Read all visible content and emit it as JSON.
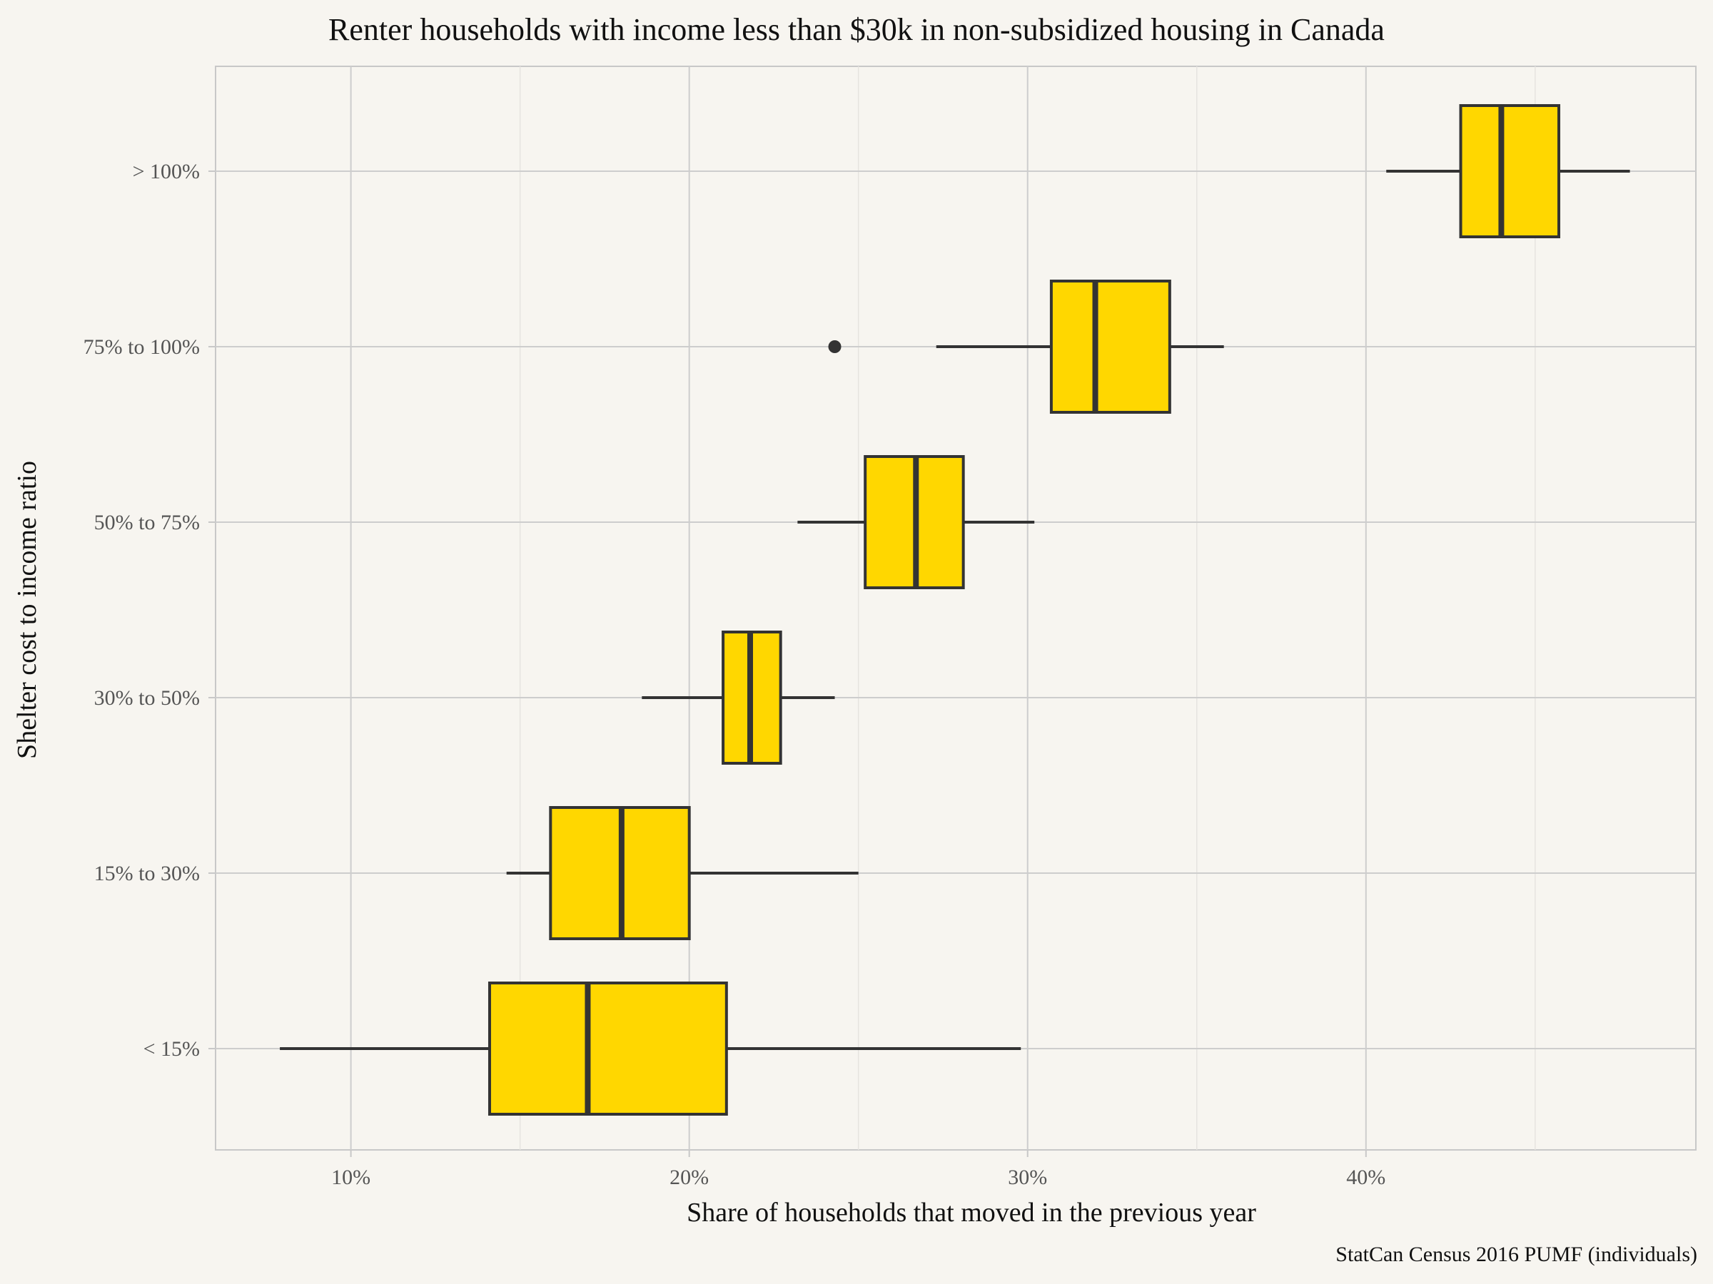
{
  "chart_data": {
    "type": "boxplot",
    "title": "Renter households with income less than $30k in non-subsidized housing in Canada",
    "xlabel": "Share of households that moved in the previous year",
    "ylabel": "Shelter cost to income ratio",
    "caption": "StatCan Census 2016 PUMF (individuals)",
    "xlim": [
      0.06,
      0.4975
    ],
    "x_ticks": [
      {
        "value": 0.1,
        "label": "10%"
      },
      {
        "value": 0.2,
        "label": "20%"
      },
      {
        "value": 0.3,
        "label": "30%"
      },
      {
        "value": 0.4,
        "label": "40%"
      }
    ],
    "x_minor_ticks": [
      0.15,
      0.25,
      0.35,
      0.45
    ],
    "grid": true,
    "fill_color": "#FFD700",
    "line_color": "#333333",
    "categories": [
      "< 15%",
      "15% to 30%",
      "30% to 50%",
      "50% to 75%",
      "75% to 100%",
      "> 100%"
    ],
    "boxes": [
      {
        "category": "< 15%",
        "whisker_low": 0.079,
        "q1": 0.141,
        "median": 0.17,
        "q3": 0.211,
        "whisker_high": 0.298,
        "outliers": []
      },
      {
        "category": "15% to 30%",
        "whisker_low": 0.146,
        "q1": 0.159,
        "median": 0.18,
        "q3": 0.2,
        "whisker_high": 0.25,
        "outliers": []
      },
      {
        "category": "30% to 50%",
        "whisker_low": 0.186,
        "q1": 0.21,
        "median": 0.218,
        "q3": 0.227,
        "whisker_high": 0.243,
        "outliers": []
      },
      {
        "category": "50% to 75%",
        "whisker_low": 0.232,
        "q1": 0.252,
        "median": 0.267,
        "q3": 0.281,
        "whisker_high": 0.302,
        "outliers": []
      },
      {
        "category": "75% to 100%",
        "whisker_low": 0.273,
        "q1": 0.307,
        "median": 0.32,
        "q3": 0.342,
        "whisker_high": 0.358,
        "outliers": [
          0.243
        ]
      },
      {
        "category": "> 100%",
        "whisker_low": 0.406,
        "q1": 0.428,
        "median": 0.44,
        "q3": 0.457,
        "whisker_high": 0.478,
        "outliers": []
      }
    ]
  }
}
